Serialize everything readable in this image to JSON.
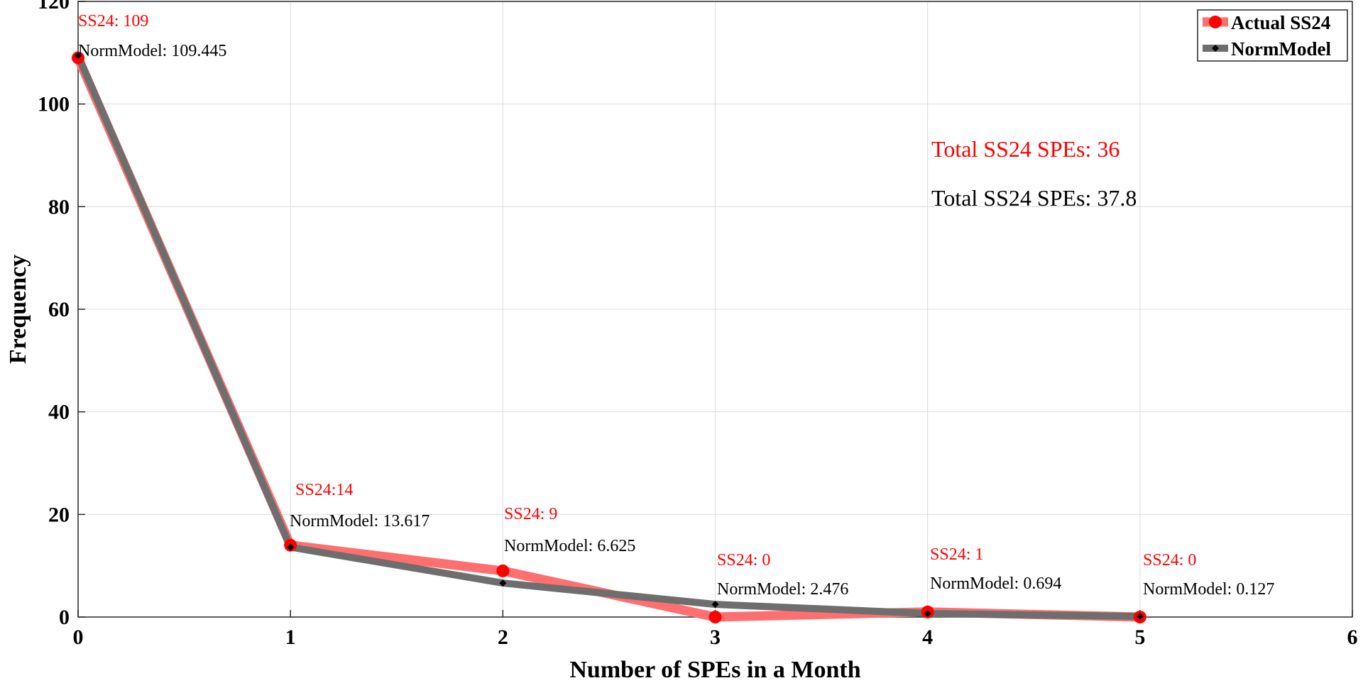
{
  "chart_data": {
    "type": "line",
    "xlabel": "Number of SPEs in a Month",
    "ylabel": "Frequency",
    "xlim": [
      0,
      6
    ],
    "ylim": [
      0,
      120
    ],
    "xticks": [
      "0",
      "1",
      "2",
      "3",
      "4",
      "5",
      "6"
    ],
    "yticks": [
      "0",
      "20",
      "40",
      "60",
      "80",
      "100",
      "120"
    ],
    "grid": true,
    "legend_position": "top-right",
    "series": [
      {
        "name": "Actual SS24",
        "color": "#ff6f6f",
        "marker_color": "#ff0000",
        "x": [
          0,
          1,
          2,
          3,
          4,
          5
        ],
        "y": [
          109,
          14,
          9,
          0,
          1,
          0
        ]
      },
      {
        "name": "NormModel",
        "color": "#6e6e6e",
        "marker_color": "#000000",
        "x": [
          0,
          1,
          2,
          3,
          4,
          5
        ],
        "y": [
          109.445,
          13.617,
          6.625,
          2.476,
          0.694,
          0.127
        ]
      }
    ],
    "annotations": {
      "actual": [
        "SS24: 109",
        "SS24:14",
        "SS24: 9",
        "SS24: 0",
        "SS24: 1",
        "SS24: 0"
      ],
      "model": [
        "NormModel: 109.445",
        "NormModel: 13.617",
        "NormModel: 6.625",
        "NormModel: 2.476",
        "NormModel: 0.694",
        "NormModel: 0.127"
      ],
      "total_actual": "Total SS24 SPEs: 36",
      "total_model": "Total SS24 SPEs: 37.8"
    }
  }
}
